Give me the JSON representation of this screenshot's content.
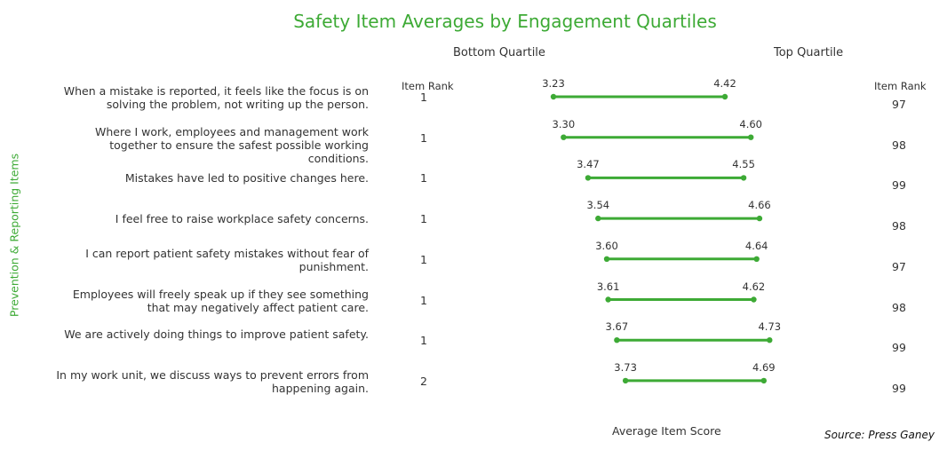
{
  "chart_data": {
    "type": "dumbbell",
    "title": "Safety Item Averages by Engagement Quartiles",
    "xlabel": "Average Item Score",
    "ylabel": "Prevention & Reporting Items",
    "series_headers": {
      "bottom": "Bottom Quartile",
      "top": "Top Quartile"
    },
    "rank_header": "Item Rank",
    "color": "#3daa35",
    "source": "Source: Press Ganey",
    "items": [
      {
        "label": "When a mistake is reported, it feels like the focus is on solving the problem, not writing up the person.",
        "bottom": 3.23,
        "top": 4.42,
        "bottom_rank": "1",
        "top_rank": "97"
      },
      {
        "label": "Where I work, employees and management work together to ensure the safest possible working conditions.",
        "bottom": 3.3,
        "top": 4.6,
        "bottom_rank": "1",
        "top_rank": "98"
      },
      {
        "label": "Mistakes have led to positive changes here.",
        "bottom": 3.47,
        "top": 4.55,
        "bottom_rank": "1",
        "top_rank": "99"
      },
      {
        "label": "I feel free to raise workplace safety concerns.",
        "bottom": 3.54,
        "top": 4.66,
        "bottom_rank": "1",
        "top_rank": "98"
      },
      {
        "label": "I can report patient safety mistakes without fear of punishment.",
        "bottom": 3.6,
        "top": 4.64,
        "bottom_rank": "1",
        "top_rank": "97"
      },
      {
        "label": "Employees will freely speak up if they see something that may negatively affect patient care.",
        "bottom": 3.61,
        "top": 4.62,
        "bottom_rank": "1",
        "top_rank": "98"
      },
      {
        "label": "We are actively doing things to improve patient safety.",
        "bottom": 3.67,
        "top": 4.73,
        "bottom_rank": "1",
        "top_rank": "99"
      },
      {
        "label": "In my work unit, we discuss ways to prevent errors from happening again.",
        "bottom": 3.73,
        "top": 4.69,
        "bottom_rank": "2",
        "top_rank": "99"
      }
    ]
  }
}
